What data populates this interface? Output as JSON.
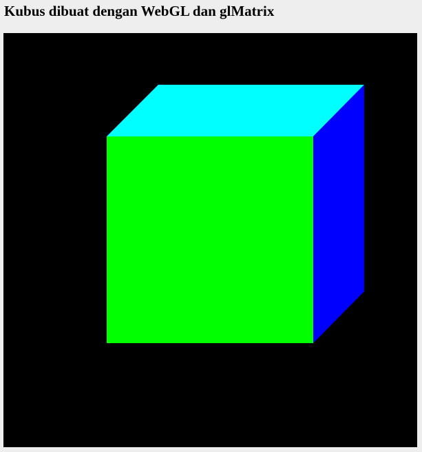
{
  "page": {
    "title": "Kubus dibuat dengan WebGL dan glMatrix"
  },
  "canvas": {
    "background_color": "#000000",
    "faces": {
      "front": {
        "color": "#00ff00"
      },
      "top": {
        "color": "#00ffff"
      },
      "right": {
        "color": "#0000ff"
      },
      "left": {
        "color": "#ff00ff"
      }
    }
  }
}
